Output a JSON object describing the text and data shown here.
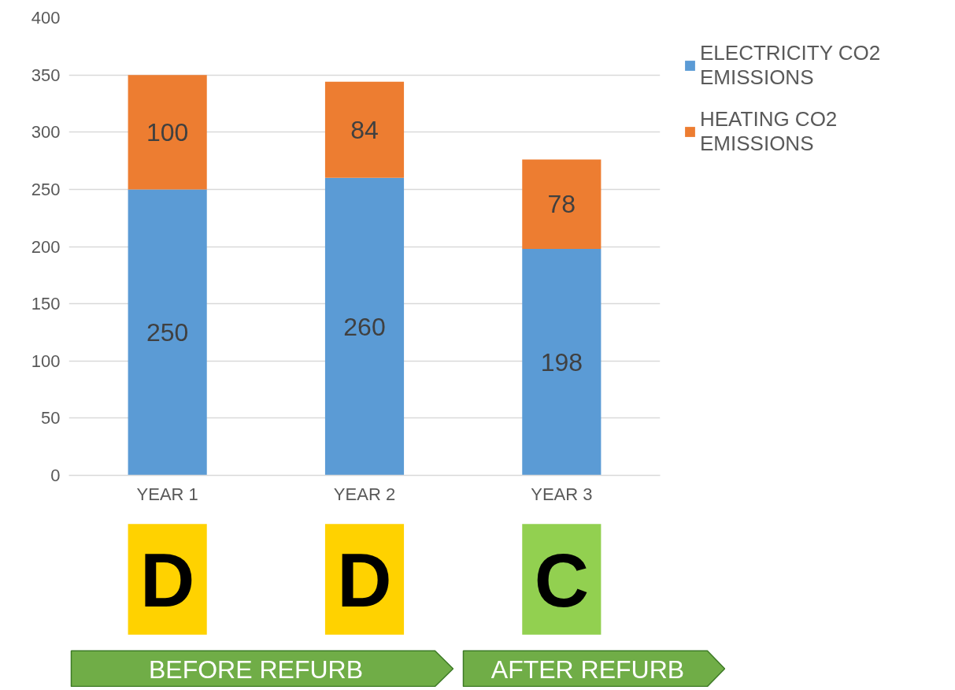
{
  "chart_data": {
    "type": "bar",
    "stacked": true,
    "categories": [
      "YEAR 1",
      "YEAR 2",
      "YEAR 3"
    ],
    "series": [
      {
        "name": "ELECTRICITY CO2 EMISSIONS",
        "color": "#5b9bd5",
        "values": [
          250,
          260,
          198
        ]
      },
      {
        "name": "HEATING CO2 EMISSIONS",
        "color": "#ed7d31",
        "values": [
          100,
          84,
          78
        ]
      }
    ],
    "ylim": [
      0,
      400
    ],
    "yticks": [
      0,
      50,
      100,
      150,
      200,
      250,
      300,
      350,
      400
    ],
    "grid": "y",
    "legend": "top right",
    "data_labels": true,
    "annotations": [
      "D",
      "D",
      "C",
      "BEFORE REFURB",
      "AFTER REFURB"
    ]
  }
}
